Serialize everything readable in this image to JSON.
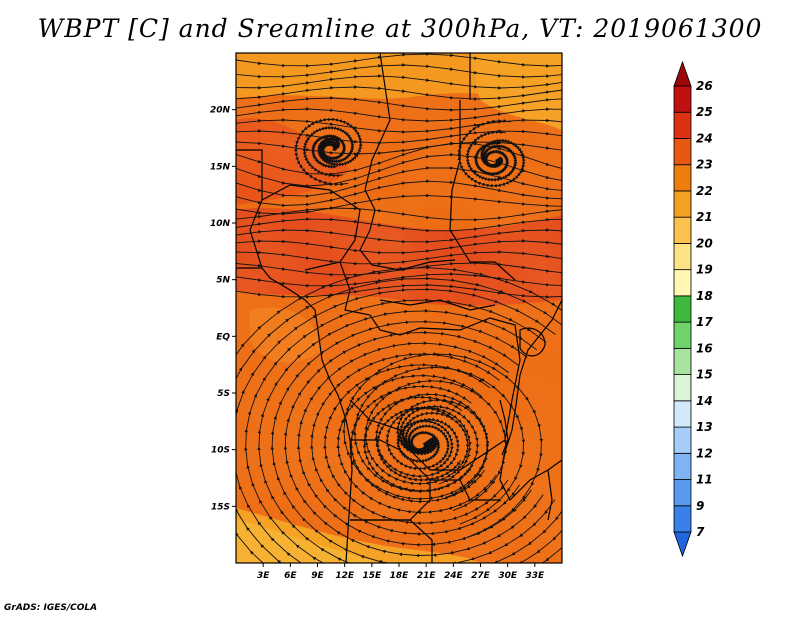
{
  "title": "WBPT [C] and Sreamline at 300hPa, VT: 2019061300",
  "credit": "GrADS: IGES/COLA",
  "map": {
    "lon_range": [
      0,
      36
    ],
    "lat_range": [
      -20,
      25
    ],
    "lon_ticks": [
      "3E",
      "6E",
      "9E",
      "12E",
      "15E",
      "18E",
      "21E",
      "24E",
      "27E",
      "30E",
      "33E"
    ],
    "lat_ticks": [
      "20N",
      "15N",
      "10N",
      "5N",
      "EQ",
      "5S",
      "10S",
      "15S"
    ],
    "field": "Wet-bulb potential temperature (WBPT) with 300hPa streamlines",
    "features": [
      {
        "name": "anticyclone-south",
        "lon": 20.5,
        "lat": -9.5
      },
      {
        "name": "vortex-north-west",
        "lon": 10.5,
        "lat": 16.5
      },
      {
        "name": "vortex-north-east",
        "lon": 28.5,
        "lat": 15.5
      }
    ]
  },
  "colorbar": {
    "labels": [
      "7",
      "9",
      "11",
      "12",
      "13",
      "14",
      "15",
      "16",
      "17",
      "18",
      "19",
      "20",
      "21",
      "22",
      "23",
      "24",
      "25",
      "26"
    ],
    "colors": [
      "#2166e0",
      "#3a80e8",
      "#5a9aee",
      "#7fb3f3",
      "#a6cdf7",
      "#d2e9fb",
      "#dcf4d6",
      "#a9e3a0",
      "#6fd26b",
      "#3fb840",
      "#fff7b3",
      "#fde385",
      "#fbc24e",
      "#f4a020",
      "#ee7d10",
      "#e85714",
      "#dc3213",
      "#c01010",
      "#9a0808"
    ]
  }
}
